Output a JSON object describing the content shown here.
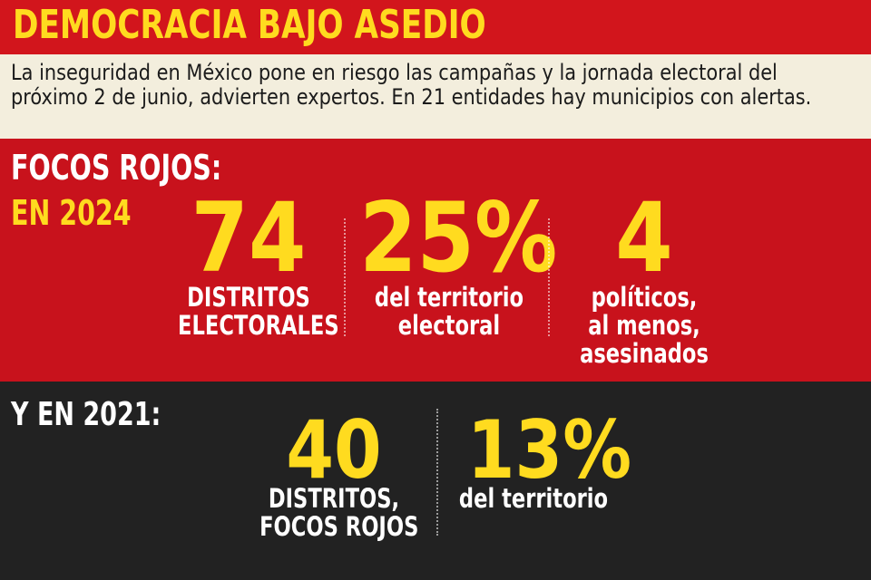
{
  "header": {
    "title": "DEMOCRACIA BAJO ASEDIO"
  },
  "intro": {
    "text": "La inseguridad en México pone en riesgo las campañas y la jornada electoral del próximo 2 de junio, advierten expertos. En 21 entidades hay municipios con alertas."
  },
  "focos_2024": {
    "heading_1": "FOCOS ROJOS:",
    "heading_2": "EN 2024",
    "stats": [
      {
        "value": "74",
        "label_lines": [
          "DISTRITOS",
          "ELECTORALES"
        ]
      },
      {
        "value": "25%",
        "label_lines": [
          "del territorio",
          "electoral"
        ]
      },
      {
        "value": "4",
        "label_lines": [
          "políticos,",
          "al menos,",
          "asesinados"
        ]
      }
    ]
  },
  "focos_2021": {
    "heading": "Y EN 2021:",
    "stats": [
      {
        "value": "40",
        "label_lines": [
          "DISTRITOS,",
          "FOCOS ROJOS"
        ]
      },
      {
        "value": "13%",
        "label_lines": [
          "del territorio"
        ]
      }
    ]
  },
  "colors": {
    "header_red": "#d2151c",
    "panel_red": "#c8121c",
    "panel_dark": "#222222",
    "accent_yellow": "#ffdb1f",
    "intro_bg": "#f3eedd"
  }
}
